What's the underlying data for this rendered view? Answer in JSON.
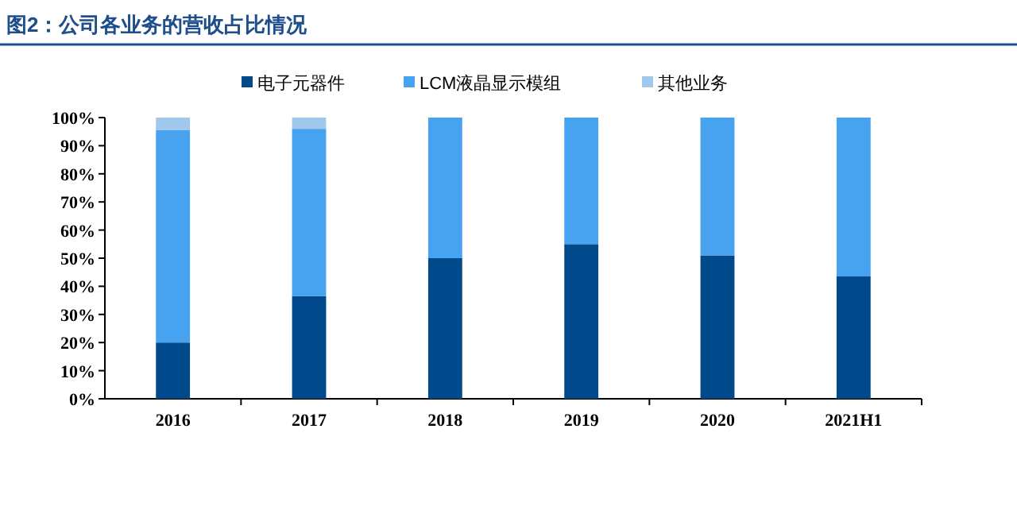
{
  "chart_data": {
    "type": "bar",
    "stacked": true,
    "title": "图2：公司各业务的营收占比情况",
    "categories": [
      "2016",
      "2017",
      "2018",
      "2019",
      "2020",
      "2021H1"
    ],
    "series": [
      {
        "name": "电子元器件",
        "color": "#004a8c",
        "values": [
          20,
          36.5,
          50,
          55,
          51,
          43.5
        ]
      },
      {
        "name": "LCM液晶显示模组",
        "color": "#47a2f0",
        "values": [
          75.5,
          59.5,
          50,
          45,
          49,
          56.5
        ]
      },
      {
        "name": "其他业务",
        "color": "#a0c8ec",
        "values": [
          4.5,
          4,
          0,
          0,
          0,
          0
        ]
      }
    ],
    "ylim": [
      0,
      100
    ],
    "yticks": [
      {
        "value": 0,
        "label": "0%"
      },
      {
        "value": 10,
        "label": "10%"
      },
      {
        "value": 20,
        "label": "20%"
      },
      {
        "value": 30,
        "label": "30%"
      },
      {
        "value": 40,
        "label": "40%"
      },
      {
        "value": 50,
        "label": "50%"
      },
      {
        "value": 60,
        "label": "60%"
      },
      {
        "value": 70,
        "label": "70%"
      },
      {
        "value": 80,
        "label": "80%"
      },
      {
        "value": 90,
        "label": "90%"
      },
      {
        "value": 100,
        "label": "100%"
      }
    ],
    "grid": false,
    "legend": "top"
  }
}
